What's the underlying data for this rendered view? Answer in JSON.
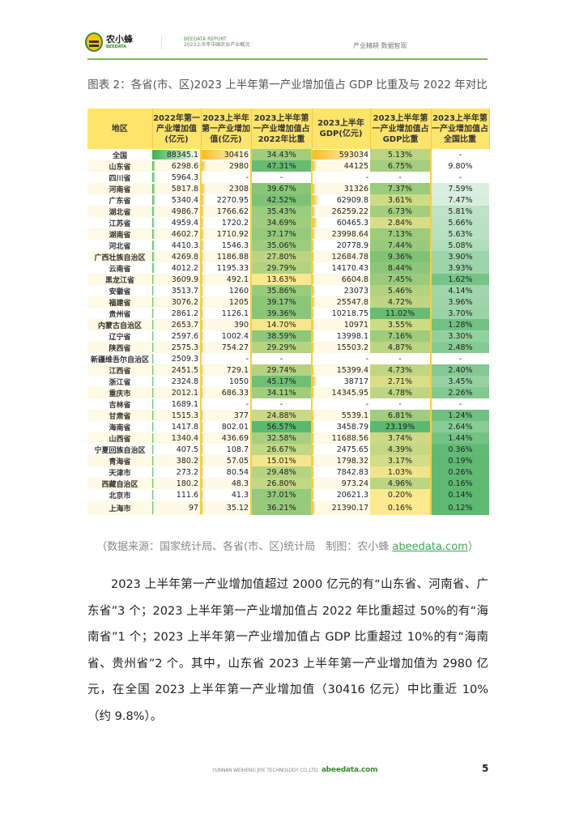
{
  "header": {
    "logo_cn": "农小蜂",
    "logo_en": "BEEDATA",
    "report": "BEEDATA REPORT",
    "report_sub": "2023上半年中国农业产业概况",
    "slogan": "产业精耕  数据智现"
  },
  "title": "图表 2：各省(市、区)2023 上半年第一产业增加值占 GDP 比重及与 2022 年对比",
  "table": {
    "columns": [
      "地区",
      "2022年第一产业增加值(亿元)",
      "2023上半年第一产业增加值(亿元)",
      "2023上半年第一产业增加值占2022年比重",
      "2023上半年GDP(亿元)",
      "2023上半年第一产业增加值占GDP比重",
      "2023上半年第一产业增加值占全国比重"
    ],
    "rows": [
      [
        "全国",
        "88345.1",
        "30416",
        "34.43%",
        "593034",
        "5.13%",
        "-"
      ],
      [
        "山东省",
        "6298.6",
        "2980",
        "47.31%",
        "44125",
        "6.75%",
        "9.80%"
      ],
      [
        "四川省",
        "5964.3",
        "-",
        "-",
        "-",
        "-",
        "-"
      ],
      [
        "河南省",
        "5817.8",
        "2308",
        "39.67%",
        "31326",
        "7.37%",
        "7.59%"
      ],
      [
        "广东省",
        "5340.4",
        "2270.95",
        "42.52%",
        "62909.8",
        "3.61%",
        "7.47%"
      ],
      [
        "湖北省",
        "4986.7",
        "1766.62",
        "35.43%",
        "26259.22",
        "6.73%",
        "5.81%"
      ],
      [
        "江苏省",
        "4959.4",
        "1720.2",
        "34.69%",
        "60465.3",
        "2.84%",
        "5.66%"
      ],
      [
        "湖南省",
        "4602.7",
        "1710.92",
        "37.17%",
        "23998.64",
        "7.13%",
        "5.63%"
      ],
      [
        "河北省",
        "4410.3",
        "1546.3",
        "35.06%",
        "20778.9",
        "7.44%",
        "5.08%"
      ],
      [
        "广西壮族自治区",
        "4269.8",
        "1186.88",
        "27.80%",
        "12684.78",
        "9.36%",
        "3.90%"
      ],
      [
        "云南省",
        "4012.2",
        "1195.33",
        "29.79%",
        "14170.43",
        "8.44%",
        "3.93%"
      ],
      [
        "黑龙江省",
        "3609.9",
        "492.1",
        "13.63%",
        "6604.8",
        "7.45%",
        "1.62%"
      ],
      [
        "安徽省",
        "3513.7",
        "1260",
        "35.86%",
        "23073",
        "5.46%",
        "4.14%"
      ],
      [
        "福建省",
        "3076.2",
        "1205",
        "39.17%",
        "25547.8",
        "4.72%",
        "3.96%"
      ],
      [
        "贵州省",
        "2861.2",
        "1126.1",
        "39.36%",
        "10218.75",
        "11.02%",
        "3.70%"
      ],
      [
        "内蒙古自治区",
        "2653.7",
        "390",
        "14.70%",
        "10971",
        "3.55%",
        "1.28%"
      ],
      [
        "辽宁省",
        "2597.6",
        "1002.4",
        "38.59%",
        "13998.1",
        "7.16%",
        "3.30%"
      ],
      [
        "陕西省",
        "2575.3",
        "754.27",
        "29.29%",
        "15503.2",
        "4.87%",
        "2.48%"
      ],
      [
        "新疆维吾尔自治区",
        "2509.3",
        "-",
        "-",
        "-",
        "-",
        "-"
      ],
      [
        "江西省",
        "2451.5",
        "729.1",
        "29.74%",
        "15399.4",
        "4.73%",
        "2.40%"
      ],
      [
        "浙江省",
        "2324.8",
        "1050",
        "45.17%",
        "38717",
        "2.71%",
        "3.45%"
      ],
      [
        "重庆市",
        "2012.1",
        "686.33",
        "34.11%",
        "14345.95",
        "4.78%",
        "2.26%"
      ],
      [
        "吉林省",
        "1689.1",
        "-",
        "-",
        "-",
        "-",
        "-"
      ],
      [
        "甘肃省",
        "1515.3",
        "377",
        "24.88%",
        "5539.1",
        "6.81%",
        "1.24%"
      ],
      [
        "海南省",
        "1417.8",
        "802.01",
        "56.57%",
        "3458.79",
        "23.19%",
        "2.64%"
      ],
      [
        "山西省",
        "1340.4",
        "436.69",
        "32.58%",
        "11688.56",
        "3.74%",
        "1.44%"
      ],
      [
        "宁夏回族自治区",
        "407.5",
        "108.7",
        "26.67%",
        "2475.65",
        "4.39%",
        "0.36%"
      ],
      [
        "青海省",
        "380.2",
        "57.05",
        "15.01%",
        "1798.32",
        "3.17%",
        "0.19%"
      ],
      [
        "天津市",
        "273.2",
        "80.54",
        "29.48%",
        "7842.83",
        "1.03%",
        "0.26%"
      ],
      [
        "西藏自治区",
        "180.2",
        "48.3",
        "26.80%",
        "973.24",
        "4.96%",
        "0.16%"
      ],
      [
        "北京市",
        "111.6",
        "41.3",
        "37.01%",
        "20621.3",
        "0.20%",
        "0.14%"
      ],
      [
        "上海市",
        "97",
        "35.12",
        "36.21%",
        "21390.17",
        "0.16%",
        "0.12%"
      ]
    ]
  },
  "source": {
    "text": "（数据来源：国家统计局、各省(市、区)统计局　制图：农小蜂 ",
    "link": "abeedata.com",
    "close": "）"
  },
  "paragraph": "2023 上半年第一产业增加值超过 2000 亿元的有“山东省、河南省、广东省”3 个；2023 上半年第一产业增加值占 2022 年比重超过 50%的有“海南省”1 个；2023 上半年第一产业增加值占 GDP 比重超过 10%的有“海南省、贵州省”2 个。其中，山东省 2023 上半年第一产业增加值为 2980 亿元，在全国 2023 上半年第一产业增加值（30416 亿元）中比重近 10%（约 9.8%）。",
  "footer": {
    "company": "YUNNAN WEIHENG JIYE TECHNOLOGY CO.,LTD.",
    "site": "abeedata.com",
    "page": "5"
  },
  "colors": {
    "green_bar": "#3cb34a",
    "orange_bar": "#fbbd1a",
    "header": "#fde46b",
    "heat_low": "#fde98f",
    "heat_high": "#5cb870",
    "rule": "#7bb661"
  }
}
